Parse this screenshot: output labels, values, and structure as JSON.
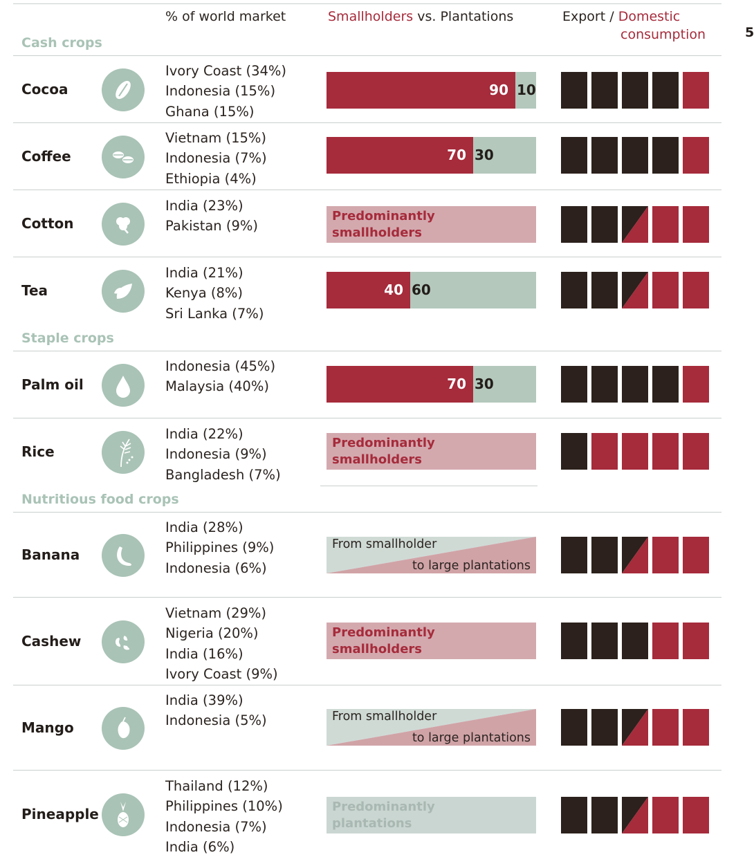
{
  "header": {
    "market": "% of world market",
    "smallholders": "Smallholders",
    "vs": " vs. ",
    "plantations": "Plantations",
    "export": "Export / ",
    "domestic_1": "Domestic",
    "domestic_2": "consumption",
    "edge_glyph": "5"
  },
  "colors": {
    "export": "#2c211c",
    "domestic": "#a62b3b",
    "smallholder_bar": "#a62b3b",
    "plantation_bar": "#b4c8bc",
    "section_label": "#a9c3b6"
  },
  "sections": [
    {
      "label": "Cash crops"
    },
    {
      "label": "Staple crops"
    },
    {
      "label": "Nutritious food crops"
    }
  ],
  "chart_data": {
    "type": "table",
    "columns": [
      "% of world market",
      "Smallholders vs. Plantations",
      "Export / Domestic consumption"
    ],
    "rows": [
      {
        "crop": "Cocoa",
        "icon": "cocoa-pod-icon",
        "section": "Cash crops",
        "countries": [
          "Ivory Coast  (34%)",
          "Indonesia  (15%)",
          "Ghana  (15%)"
        ],
        "production": {
          "kind": "split",
          "smallholders": 90,
          "plantations": 10,
          "s_label": "90",
          "p_label": "10"
        },
        "export_domestic": [
          "export",
          "export",
          "export",
          "export",
          "domestic"
        ]
      },
      {
        "crop": "Coffee",
        "icon": "coffee-beans-icon",
        "section": "Cash crops",
        "countries": [
          "Vietnam (15%)",
          "Indonesia (7%)",
          "Ethiopia (4%)"
        ],
        "production": {
          "kind": "split",
          "smallholders": 70,
          "plantations": 30,
          "s_label": "70",
          "p_label": "30"
        },
        "export_domestic": [
          "export",
          "export",
          "export",
          "export",
          "domestic"
        ]
      },
      {
        "crop": "Cotton",
        "icon": "cotton-boll-icon",
        "section": "Cash crops",
        "countries": [
          "India (23%)",
          "Pakistan (9%)"
        ],
        "production": {
          "kind": "text",
          "style": "smallholders",
          "lines": [
            "Predominantly",
            "smallholders"
          ]
        },
        "export_domestic": [
          "export",
          "export",
          "mixed",
          "domestic",
          "domestic"
        ]
      },
      {
        "crop": "Tea",
        "icon": "tea-leaf-icon",
        "section": "Cash crops",
        "countries": [
          "India  (21%)",
          "Kenya  (8%)",
          "Sri Lanka (7%)"
        ],
        "production": {
          "kind": "split",
          "smallholders": 40,
          "plantations": 60,
          "s_label": "40",
          "p_label": "60"
        },
        "export_domestic": [
          "export",
          "export",
          "mixed",
          "domestic",
          "domestic"
        ]
      },
      {
        "crop": "Palm oil",
        "icon": "oil-drop-icon",
        "section": "Staple crops",
        "countries": [
          "Indonesia (45%)",
          "Malaysia (40%)"
        ],
        "production": {
          "kind": "split",
          "smallholders": 70,
          "plantations": 30,
          "s_label": "70",
          "p_label": "30"
        },
        "export_domestic": [
          "export",
          "export",
          "export",
          "export",
          "domestic"
        ]
      },
      {
        "crop": "Rice",
        "icon": "rice-stalk-icon",
        "section": "Staple crops",
        "countries": [
          "India (22%)",
          "Indonesia (9%)",
          "Bangladesh (7%)"
        ],
        "production": {
          "kind": "text",
          "style": "smallholders",
          "lines": [
            "Predominantly",
            "smallholders"
          ]
        },
        "export_domestic": [
          "export",
          "domestic",
          "domestic",
          "domestic",
          "domestic"
        ]
      },
      {
        "crop": "Banana",
        "icon": "banana-icon",
        "section": "Nutritious food crops",
        "countries": [
          "India (28%)",
          "Philippines (9%)",
          "Indonesia (6%)"
        ],
        "production": {
          "kind": "gradient",
          "lines": [
            "From smallholder",
            "to large plantations"
          ]
        },
        "export_domestic": [
          "export",
          "export",
          "mixed",
          "domestic",
          "domestic"
        ]
      },
      {
        "crop": "Cashew",
        "icon": "cashew-icon",
        "section": "Nutritious food crops",
        "countries": [
          "Vietnam  (29%)",
          "Nigeria (20%)",
          "India (16%)",
          "Ivory Coast (9%)"
        ],
        "production": {
          "kind": "text",
          "style": "smallholders",
          "lines": [
            "Predominantly",
            "smallholders"
          ]
        },
        "export_domestic": [
          "export",
          "export",
          "export",
          "domestic",
          "domestic"
        ]
      },
      {
        "crop": "Mango",
        "icon": "mango-icon",
        "section": "Nutritious food crops",
        "countries": [
          "India (39%)",
          "Indonesia (5%)"
        ],
        "production": {
          "kind": "gradient",
          "lines": [
            "From smallholder",
            "to large plantations"
          ]
        },
        "export_domestic": [
          "export",
          "export",
          "mixed",
          "domestic",
          "domestic"
        ]
      },
      {
        "crop": "Pineapple",
        "icon": "pineapple-icon",
        "section": "Nutritious food crops",
        "countries": [
          "Thailand (12%)",
          "Philippines (10%)",
          "Indonesia (7%)",
          "India (6%)"
        ],
        "production": {
          "kind": "text",
          "style": "plantations",
          "lines": [
            "Predominantly",
            "plantations"
          ]
        },
        "export_domestic": [
          "export",
          "export",
          "mixed",
          "domestic",
          "domestic"
        ]
      }
    ]
  }
}
